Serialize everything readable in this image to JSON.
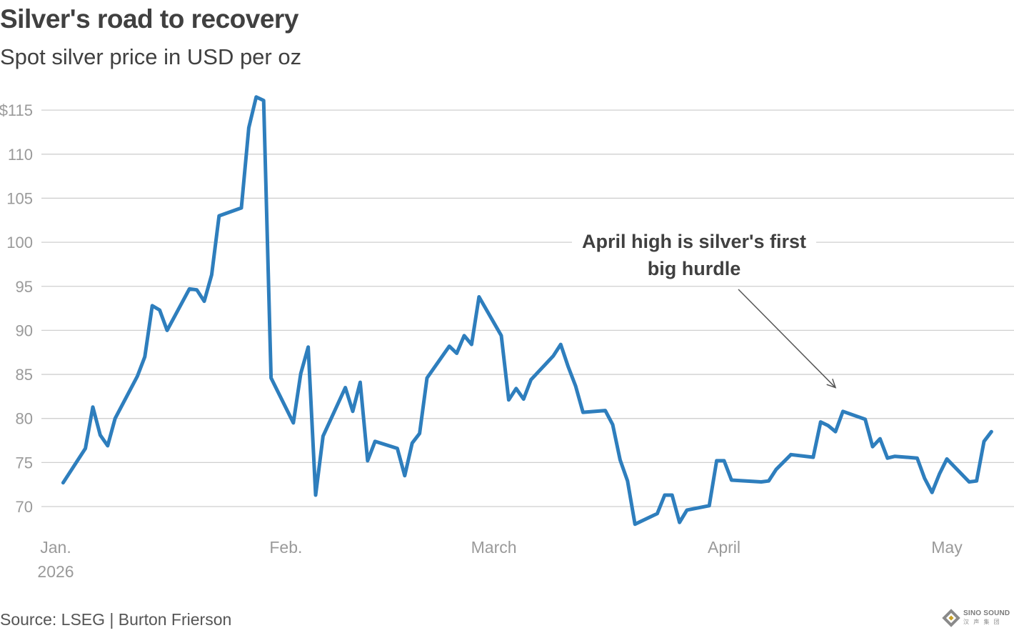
{
  "chart_data": {
    "type": "line",
    "title": "Silver's road to recovery",
    "subtitle": "Spot silver price in USD per oz",
    "xlabel": "",
    "ylabel": "",
    "ylim": [
      67,
      118
    ],
    "grid": true,
    "y_ticks": [
      {
        "value": 115,
        "label": "$115"
      },
      {
        "value": 110,
        "label": "110"
      },
      {
        "value": 105,
        "label": "105"
      },
      {
        "value": 100,
        "label": "100"
      },
      {
        "value": 95,
        "label": "95"
      },
      {
        "value": 90,
        "label": "90"
      },
      {
        "value": 85,
        "label": "85"
      },
      {
        "value": 80,
        "label": "80"
      },
      {
        "value": 75,
        "label": "75"
      },
      {
        "value": 70,
        "label": "70"
      }
    ],
    "x_ticks": [
      {
        "date": "2026-01-01",
        "label": "Jan.",
        "sublabel": "2026"
      },
      {
        "date": "2026-02-01",
        "label": "Feb."
      },
      {
        "date": "2026-03-01",
        "label": "March"
      },
      {
        "date": "2026-04-01",
        "label": "April"
      },
      {
        "date": "2026-05-01",
        "label": "May"
      }
    ],
    "series": [
      {
        "color": "#2e7ebd",
        "points": [
          [
            "2026-01-02",
            72.7
          ],
          [
            "2026-01-05",
            76.6
          ],
          [
            "2026-01-06",
            81.3
          ],
          [
            "2026-01-07",
            78.1
          ],
          [
            "2026-01-08",
            76.9
          ],
          [
            "2026-01-09",
            80.0
          ],
          [
            "2026-01-12",
            84.8
          ],
          [
            "2026-01-13",
            87.0
          ],
          [
            "2026-01-14",
            92.8
          ],
          [
            "2026-01-15",
            92.3
          ],
          [
            "2026-01-16",
            90.0
          ],
          [
            "2026-01-19",
            94.7
          ],
          [
            "2026-01-20",
            94.6
          ],
          [
            "2026-01-21",
            93.3
          ],
          [
            "2026-01-22",
            96.3
          ],
          [
            "2026-01-23",
            103.0
          ],
          [
            "2026-01-26",
            103.9
          ],
          [
            "2026-01-27",
            113.0
          ],
          [
            "2026-01-28",
            116.5
          ],
          [
            "2026-01-29",
            116.1
          ],
          [
            "2026-01-30",
            84.6
          ],
          [
            "2026-02-02",
            79.5
          ],
          [
            "2026-02-03",
            85.1
          ],
          [
            "2026-02-04",
            88.1
          ],
          [
            "2026-02-05",
            71.3
          ],
          [
            "2026-02-06",
            78.0
          ],
          [
            "2026-02-09",
            83.5
          ],
          [
            "2026-02-10",
            80.8
          ],
          [
            "2026-02-11",
            84.1
          ],
          [
            "2026-02-12",
            75.2
          ],
          [
            "2026-02-13",
            77.4
          ],
          [
            "2026-02-16",
            76.6
          ],
          [
            "2026-02-17",
            73.5
          ],
          [
            "2026-02-18",
            77.2
          ],
          [
            "2026-02-19",
            78.3
          ],
          [
            "2026-02-20",
            84.6
          ],
          [
            "2026-02-23",
            88.2
          ],
          [
            "2026-02-24",
            87.4
          ],
          [
            "2026-02-25",
            89.4
          ],
          [
            "2026-02-26",
            88.4
          ],
          [
            "2026-02-27",
            93.8
          ],
          [
            "2026-03-02",
            89.4
          ],
          [
            "2026-03-03",
            82.1
          ],
          [
            "2026-03-04",
            83.4
          ],
          [
            "2026-03-05",
            82.2
          ],
          [
            "2026-03-06",
            84.4
          ],
          [
            "2026-03-09",
            87.1
          ],
          [
            "2026-03-10",
            88.4
          ],
          [
            "2026-03-11",
            85.9
          ],
          [
            "2026-03-12",
            83.7
          ],
          [
            "2026-03-13",
            80.7
          ],
          [
            "2026-03-16",
            80.9
          ],
          [
            "2026-03-17",
            79.3
          ],
          [
            "2026-03-18",
            75.3
          ],
          [
            "2026-03-19",
            72.9
          ],
          [
            "2026-03-20",
            68.0
          ],
          [
            "2026-03-23",
            69.2
          ],
          [
            "2026-03-24",
            71.3
          ],
          [
            "2026-03-25",
            71.3
          ],
          [
            "2026-03-26",
            68.2
          ],
          [
            "2026-03-27",
            69.6
          ],
          [
            "2026-03-30",
            70.1
          ],
          [
            "2026-03-31",
            75.2
          ],
          [
            "2026-04-01",
            75.2
          ],
          [
            "2026-04-02",
            73.0
          ],
          [
            "2026-04-06",
            72.8
          ],
          [
            "2026-04-07",
            72.9
          ],
          [
            "2026-04-08",
            74.2
          ],
          [
            "2026-04-10",
            75.9
          ],
          [
            "2026-04-13",
            75.6
          ],
          [
            "2026-04-14",
            79.6
          ],
          [
            "2026-04-15",
            79.2
          ],
          [
            "2026-04-16",
            78.5
          ],
          [
            "2026-04-17",
            80.8
          ],
          [
            "2026-04-20",
            79.9
          ],
          [
            "2026-04-21",
            76.8
          ],
          [
            "2026-04-22",
            77.7
          ],
          [
            "2026-04-23",
            75.5
          ],
          [
            "2026-04-24",
            75.7
          ],
          [
            "2026-04-27",
            75.5
          ],
          [
            "2026-04-28",
            73.2
          ],
          [
            "2026-04-29",
            71.6
          ],
          [
            "2026-04-30",
            73.7
          ],
          [
            "2026-05-01",
            75.4
          ],
          [
            "2026-05-04",
            72.8
          ],
          [
            "2026-05-05",
            72.9
          ],
          [
            "2026-05-06",
            77.4
          ],
          [
            "2026-05-07",
            78.5
          ]
        ]
      }
    ],
    "annotation": {
      "lines": [
        "April high is silver's first",
        "big hurdle"
      ],
      "target_date": "2026-04-16",
      "target_value": 83.5
    }
  },
  "source": "Source: LSEG | Burton Frierson",
  "logo": {
    "brand": "SINO SOUND",
    "sub": "汉 声 集 团",
    "colors": {
      "outer": "#8a8a8a",
      "inner": "#c9a227"
    }
  }
}
